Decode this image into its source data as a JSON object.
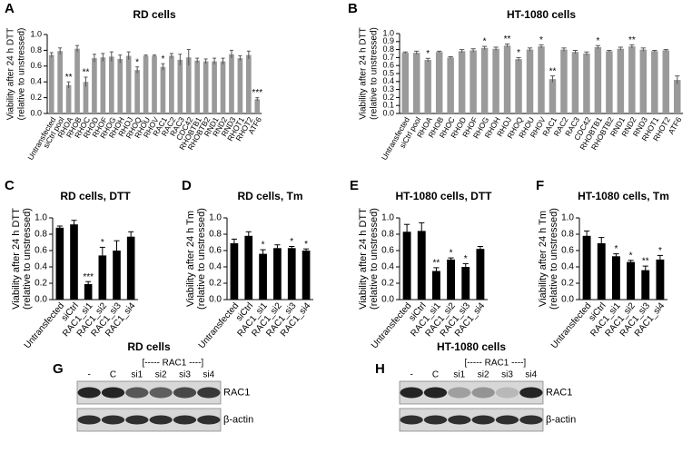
{
  "chart_data": [
    {
      "type": "bar",
      "panel": "A",
      "title": "RD cells",
      "ylabel": [
        "Viability after 24 h DTT",
        "(relative to unstressed)"
      ],
      "categories": [
        "Untransfected",
        "siCtrl pool",
        "RHOA",
        "RHOB",
        "RHOC",
        "RHOD",
        "RHOF",
        "RHOG",
        "RHOH",
        "RHOJ",
        "RHOQ",
        "RHOU",
        "RHOV",
        "RAC1",
        "RAC2",
        "RAC3",
        "CDC42",
        "RHOBTB1",
        "RHOBTB2",
        "RND1",
        "RND2",
        "RND3",
        "RHOT1",
        "RHOT2",
        "ATF6"
      ],
      "values": [
        0.74,
        0.79,
        0.36,
        0.82,
        0.4,
        0.7,
        0.71,
        0.72,
        0.69,
        0.73,
        0.55,
        0.73,
        0.73,
        0.59,
        0.73,
        0.68,
        0.71,
        0.67,
        0.66,
        0.66,
        0.66,
        0.75,
        0.7,
        0.74,
        0.18
      ],
      "errors": [
        0.03,
        0.04,
        0.04,
        0.04,
        0.06,
        0.05,
        0.05,
        0.06,
        0.05,
        0.05,
        0.04,
        0.01,
        0.01,
        0.04,
        0.03,
        0.07,
        0.1,
        0.03,
        0.03,
        0.04,
        0.04,
        0.05,
        0.03,
        0.05,
        0.02
      ],
      "significance": [
        null,
        null,
        "**",
        null,
        "**",
        null,
        null,
        null,
        null,
        null,
        "*",
        null,
        null,
        "*",
        null,
        null,
        null,
        null,
        null,
        null,
        null,
        null,
        null,
        null,
        "***"
      ],
      "color": "#9a9a9a",
      "ylim": [
        0,
        1
      ],
      "yticks": [
        {
          "value": 0,
          "label": "0.0"
        },
        0.2,
        0.4,
        0.6,
        0.8,
        {
          "value": 1,
          "label": "1.0"
        }
      ]
    },
    {
      "type": "bar",
      "panel": "B",
      "title": "HT-1080 cells",
      "ylabel": [
        "Viability after 24 h DTT",
        "(relative to unstressed)"
      ],
      "categories": [
        "Untransfected",
        "siCtrl pool",
        "RHOA",
        "RHOB",
        "RHOC",
        "RHOD",
        "RHOF",
        "RHOG",
        "RHOH",
        "RHOJ",
        "RHOQ",
        "RHOU",
        "RHOV",
        "RAC1",
        "RAC2",
        "RAC3",
        "CDC42",
        "RHOBTB1",
        "RHOBTB2",
        "RND1",
        "RND2",
        "RND3",
        "RHOT1",
        "RHOT2",
        "ATF6"
      ],
      "values": [
        0.76,
        0.76,
        0.67,
        0.77,
        0.7,
        0.78,
        0.79,
        0.82,
        0.81,
        0.85,
        0.68,
        0.8,
        0.84,
        0.43,
        0.8,
        0.77,
        0.75,
        0.83,
        0.78,
        0.81,
        0.84,
        0.8,
        0.78,
        0.79,
        0.42
      ],
      "errors": [
        0.01,
        0.02,
        0.02,
        0.01,
        0.01,
        0.02,
        0.02,
        0.02,
        0.02,
        0.02,
        0.02,
        0.02,
        0.02,
        0.04,
        0.02,
        0.02,
        0.02,
        0.02,
        0.01,
        0.02,
        0.02,
        0.02,
        0.01,
        0.01,
        0.05
      ],
      "significance": [
        null,
        null,
        "*",
        null,
        null,
        null,
        null,
        "*",
        null,
        "**",
        "*",
        null,
        "*",
        "**",
        null,
        null,
        null,
        "*",
        null,
        null,
        "**",
        null,
        null,
        null,
        null
      ],
      "color": "#9a9a9a",
      "ylim": [
        0,
        1
      ],
      "yticks": [
        {
          "value": 0,
          "label": "0.0"
        },
        0.1,
        0.2,
        0.3,
        0.4,
        0.5,
        0.6,
        0.7,
        0.8,
        0.9,
        {
          "value": 1,
          "label": "1.0"
        }
      ]
    },
    {
      "type": "bar",
      "panel": "C",
      "title": "RD cells, DTT",
      "ylabel": [
        "Viability after 24 h DTT",
        "(relative to unstressed)"
      ],
      "categories": [
        "Untransfected",
        "siCtrl",
        "RAC1_si1",
        "RAC1_si2",
        "RAC1_si3",
        "RAC1_si4"
      ],
      "values": [
        0.88,
        0.92,
        0.19,
        0.54,
        0.6,
        0.77
      ],
      "errors": [
        0.02,
        0.05,
        0.03,
        0.1,
        0.12,
        0.06
      ],
      "significance": [
        null,
        null,
        "***",
        "*",
        null,
        null
      ],
      "color": "#000000",
      "ylim": [
        0,
        1
      ],
      "yticks": [
        {
          "value": 0,
          "label": "0.0"
        },
        0.2,
        0.4,
        0.6,
        0.8,
        {
          "value": 1,
          "label": "1.0"
        }
      ]
    },
    {
      "type": "bar",
      "panel": "D",
      "title": "RD cells, Tm",
      "ylabel": [
        "Viability after 24 h Tm",
        "(relative to unstressed)"
      ],
      "categories": [
        "Untransfected",
        "siCtrl",
        "RAC1_si1",
        "RAC1_si2",
        "RAC1_si3",
        "RAC1_si4"
      ],
      "values": [
        0.69,
        0.78,
        0.56,
        0.63,
        0.63,
        0.6
      ],
      "errors": [
        0.05,
        0.05,
        0.05,
        0.04,
        0.02,
        0.02
      ],
      "significance": [
        null,
        null,
        "*",
        null,
        "*",
        "*"
      ],
      "color": "#000000",
      "ylim": [
        0,
        1
      ],
      "yticks": [
        {
          "value": 0,
          "label": "0.0"
        },
        0.2,
        0.4,
        0.6,
        0.8,
        {
          "value": 1,
          "label": "1.0"
        }
      ]
    },
    {
      "type": "bar",
      "panel": "E",
      "title": "HT-1080 cells, DTT",
      "ylabel": [
        "Viability after 24 h DTT",
        "(relative to unstressed)"
      ],
      "categories": [
        "Untransfected",
        "siCtrl",
        "RAC1_si1",
        "RAC1_si2",
        "RAC1_si3",
        "RAC1_si4"
      ],
      "values": [
        0.83,
        0.84,
        0.35,
        0.49,
        0.4,
        0.62
      ],
      "errors": [
        0.09,
        0.1,
        0.04,
        0.02,
        0.04,
        0.03
      ],
      "significance": [
        null,
        null,
        "**",
        "*",
        "*",
        null
      ],
      "color": "#000000",
      "ylim": [
        0,
        1
      ],
      "yticks": [
        {
          "value": 0,
          "label": "0.0"
        },
        0.2,
        0.4,
        0.6,
        0.8,
        {
          "value": 1,
          "label": "1.0"
        }
      ]
    },
    {
      "type": "bar",
      "panel": "F",
      "title": "HT-1080 cells, Tm",
      "ylabel": [
        "Viability after 24 h Tm",
        "(relative to unstressed)"
      ],
      "categories": [
        "Untransfected",
        "siCtrl",
        "RAC1_si1",
        "RAC1_si2",
        "RAC1_si3",
        "RAC1_si4"
      ],
      "values": [
        0.78,
        0.69,
        0.53,
        0.46,
        0.36,
        0.49
      ],
      "errors": [
        0.06,
        0.07,
        0.03,
        0.02,
        0.05,
        0.05
      ],
      "significance": [
        null,
        null,
        "*",
        "*",
        "**",
        "*"
      ],
      "color": "#000000",
      "ylim": [
        0,
        1
      ],
      "yticks": [
        {
          "value": 0,
          "label": "0.0"
        },
        0.2,
        0.4,
        0.6,
        0.8,
        {
          "value": 1,
          "label": "1.0"
        }
      ]
    }
  ],
  "blots": [
    {
      "panel": "G",
      "title": "RD cells",
      "lanes": [
        "-",
        "C",
        "si1",
        "si2",
        "si3",
        "si4"
      ],
      "group_label": "[----- RAC1 ----]",
      "rows": [
        "RAC1",
        "β-actin"
      ]
    },
    {
      "panel": "H",
      "title": "HT-1080 cells",
      "lanes": [
        "-",
        "C",
        "si1",
        "si2",
        "si3",
        "si4"
      ],
      "group_label": "[----- RAC1 ----]",
      "rows": [
        "RAC1",
        "β-actin"
      ]
    }
  ]
}
